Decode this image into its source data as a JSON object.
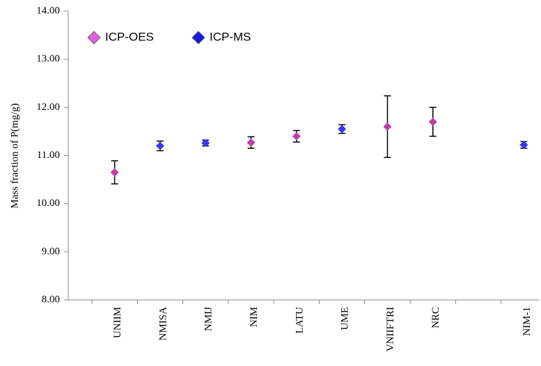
{
  "chart_data": {
    "type": "scatter",
    "y_label": "Mass fraction of P(mg/g)",
    "categories": [
      "UNIIM",
      "NMISA",
      "NMIJ",
      "NIM",
      "LATU",
      "UME",
      "VNIIFTRI",
      "NRC",
      null,
      "NIM-1"
    ],
    "series": [
      {
        "name": "ICP-OES",
        "color": "#c03caa",
        "legend_color": "#e060e0",
        "values": [
          10.65,
          null,
          null,
          11.27,
          11.4,
          null,
          11.6,
          11.7,
          null,
          null
        ],
        "errors": [
          0.24,
          null,
          null,
          0.12,
          0.12,
          null,
          0.64,
          0.3,
          null,
          null
        ]
      },
      {
        "name": "ICP-MS",
        "color": "#3838ee",
        "legend_color": "#1a1ae0",
        "values": [
          null,
          11.2,
          11.26,
          null,
          null,
          11.55,
          null,
          null,
          null,
          11.22
        ],
        "errors": [
          null,
          0.1,
          0.06,
          null,
          null,
          0.09,
          null,
          null,
          null,
          0.07
        ]
      }
    ],
    "ylim": [
      8,
      14
    ],
    "yticks": [
      {
        "value": 8,
        "label": "8.00"
      },
      {
        "value": 9,
        "label": "9.00"
      },
      {
        "value": 10,
        "label": "10.00"
      },
      {
        "value": 11,
        "label": "11.00"
      },
      {
        "value": 12,
        "label": "12.00"
      },
      {
        "value": 13,
        "label": "13.00"
      },
      {
        "value": 14,
        "label": "14.00"
      }
    ],
    "legend": "top-left"
  }
}
